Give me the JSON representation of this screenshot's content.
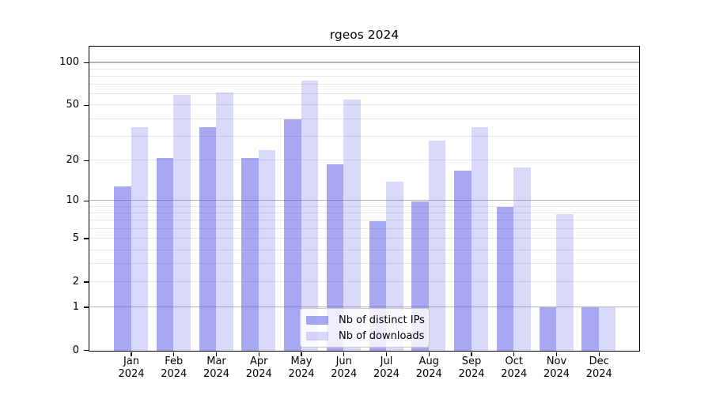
{
  "figure": {
    "title": "rgeos 2024"
  },
  "y_axis": {
    "tick_labels": [
      "0",
      "1",
      "2",
      "5",
      "10",
      "20",
      "50",
      "100"
    ]
  },
  "x_axis": {
    "months": [
      "Jan",
      "Feb",
      "Mar",
      "Apr",
      "May",
      "Jun",
      "Jul",
      "Aug",
      "Sep",
      "Oct",
      "Nov",
      "Dec"
    ],
    "year": "2024"
  },
  "legend": {
    "items": [
      {
        "label": "Nb of distinct IPs",
        "color_key": "distinct_ips"
      },
      {
        "label": "Nb of downloads",
        "color_key": "downloads"
      }
    ]
  },
  "colors": {
    "distinct_ips": "rgba(82,82,230,0.5)",
    "downloads": "rgba(82,82,230,0.22)",
    "distinct_ips_composited": "#a9a9f2",
    "downloads_composited": "#d9d9f8",
    "major_grid": "#b3b3b3",
    "minor_grid": "#e7e7e7",
    "axis": "#000000"
  },
  "chart_data": {
    "type": "bar",
    "title": "rgeos 2024",
    "categories": [
      "Jan 2024",
      "Feb 2024",
      "Mar 2024",
      "Apr 2024",
      "May 2024",
      "Jun 2024",
      "Jul 2024",
      "Aug 2024",
      "Sep 2024",
      "Oct 2024",
      "Nov 2024",
      "Dec 2024"
    ],
    "series": [
      {
        "name": "Nb of distinct IPs",
        "values": [
          13,
          21,
          35,
          21,
          40,
          19,
          7,
          10,
          17,
          9,
          1,
          1
        ]
      },
      {
        "name": "Nb of downloads",
        "values": [
          35,
          60,
          62,
          24,
          75,
          55,
          14,
          28,
          35,
          18,
          8,
          1
        ]
      }
    ],
    "y_scale": "log1p",
    "y_ticks": [
      0,
      1,
      2,
      5,
      10,
      20,
      50,
      100
    ],
    "y_major_gridlines": [
      1,
      10,
      100
    ],
    "y_minor_gridlines": [
      2,
      3,
      4,
      5,
      6,
      7,
      8,
      9,
      20,
      30,
      40,
      50,
      60,
      70,
      80,
      90
    ],
    "ylim": [
      0,
      129
    ],
    "xlabel": "",
    "ylabel": "",
    "grid": true,
    "legend_position": "lower center"
  }
}
